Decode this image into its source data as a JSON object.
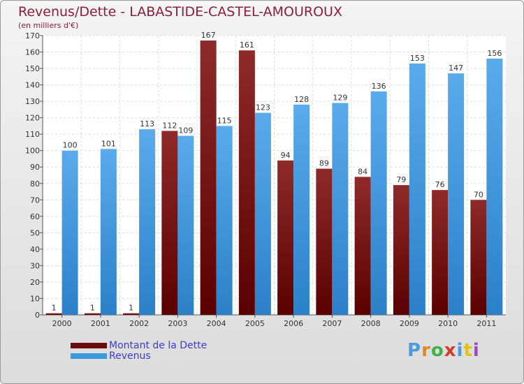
{
  "title": "Revenus/Dette - LABASTIDE-CASTEL-AMOUROUX",
  "subtitle": "(en milliers d'€)",
  "colors": {
    "dette": "#7a1a1a",
    "revenus": "#3a9ae0",
    "title": "#8b1f3a",
    "legend_text": "#3b3bd6"
  },
  "legend": {
    "dette_label": "Montant de la Dette",
    "revenus_label": "Revenus"
  },
  "logo": {
    "text": "Proxiti",
    "letter_colors": [
      "#4a9be0",
      "#e08a1e",
      "#3fb04a",
      "#d43a2a",
      "#4a9be0",
      "#e0c21e",
      "#9b4ac0"
    ]
  },
  "chart_data": {
    "type": "bar",
    "categories": [
      "2000",
      "2001",
      "2002",
      "2003",
      "2004",
      "2005",
      "2006",
      "2007",
      "2008",
      "2009",
      "2010",
      "2011"
    ],
    "series": [
      {
        "name": "Montant de la Dette",
        "values": [
          1,
          1,
          1,
          112,
          167,
          161,
          94,
          89,
          84,
          79,
          76,
          70
        ]
      },
      {
        "name": "Revenus",
        "values": [
          100,
          101,
          113,
          109,
          115,
          123,
          128,
          129,
          136,
          153,
          147,
          156
        ]
      }
    ],
    "ylim": [
      0,
      170
    ],
    "yticks": [
      0,
      10,
      20,
      30,
      40,
      50,
      60,
      70,
      80,
      90,
      100,
      110,
      120,
      130,
      140,
      150,
      160,
      170
    ],
    "grid": true,
    "legend_position": "bottom-left"
  }
}
